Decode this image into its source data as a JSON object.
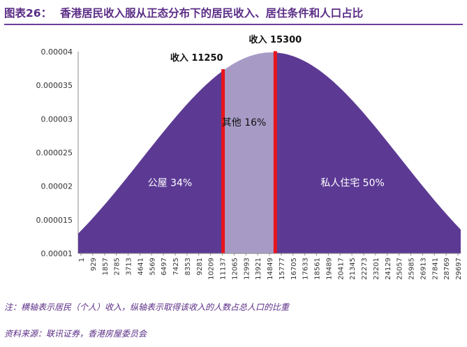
{
  "header": {
    "figure_label": "图表26：",
    "title": "香港居民收入服从正态分布下的居民收入、居住条件和人口占比"
  },
  "chart_data": {
    "type": "area",
    "distribution": {
      "mean": 15000,
      "std": 10000
    },
    "xlim": [
      1,
      29697
    ],
    "ylim": [
      1e-05,
      4e-05
    ],
    "y_ticks": [
      1e-05,
      1.5e-05,
      2e-05,
      2.5e-05,
      3e-05,
      3.5e-05,
      4e-05
    ],
    "y_tick_labels": [
      "0.00001",
      "0.000015",
      "0.00002",
      "0.000025",
      "0.00003",
      "0.000035",
      "0.00004"
    ],
    "x_tick_labels": [
      "1",
      "929",
      "1857",
      "2785",
      "3713",
      "4641",
      "5569",
      "6497",
      "7425",
      "8353",
      "9281",
      "10209",
      "11137",
      "12065",
      "12993",
      "13921",
      "14849",
      "15777",
      "16705",
      "17633",
      "18561",
      "19489",
      "20417",
      "21345",
      "22273",
      "23201",
      "24129",
      "25057",
      "25985",
      "26913",
      "27841",
      "28769",
      "29697"
    ],
    "regions": [
      {
        "label": "公屋 34%",
        "from": 1,
        "to": 11250,
        "color": "#5c3a94"
      },
      {
        "label": "其他 16%",
        "from": 11250,
        "to": 15300,
        "color": "#a79bc6"
      },
      {
        "label": "私人住宅 50%",
        "from": 15300,
        "to": 29697,
        "color": "#5c3a94"
      }
    ],
    "cutoffs": [
      {
        "x": 11250,
        "label": "收入 11250"
      },
      {
        "x": 15300,
        "label": "收入 15300"
      }
    ],
    "colors": {
      "main": "#5c3a94",
      "middle": "#a79bc6",
      "cutoff": "#e8141c"
    }
  },
  "notes": {
    "note": "注：横轴表示居民（个人）收入，纵轴表示取得该收入的人数占总人口的比重",
    "source": "资料来源：联讯证券，香港房屋委员会"
  }
}
